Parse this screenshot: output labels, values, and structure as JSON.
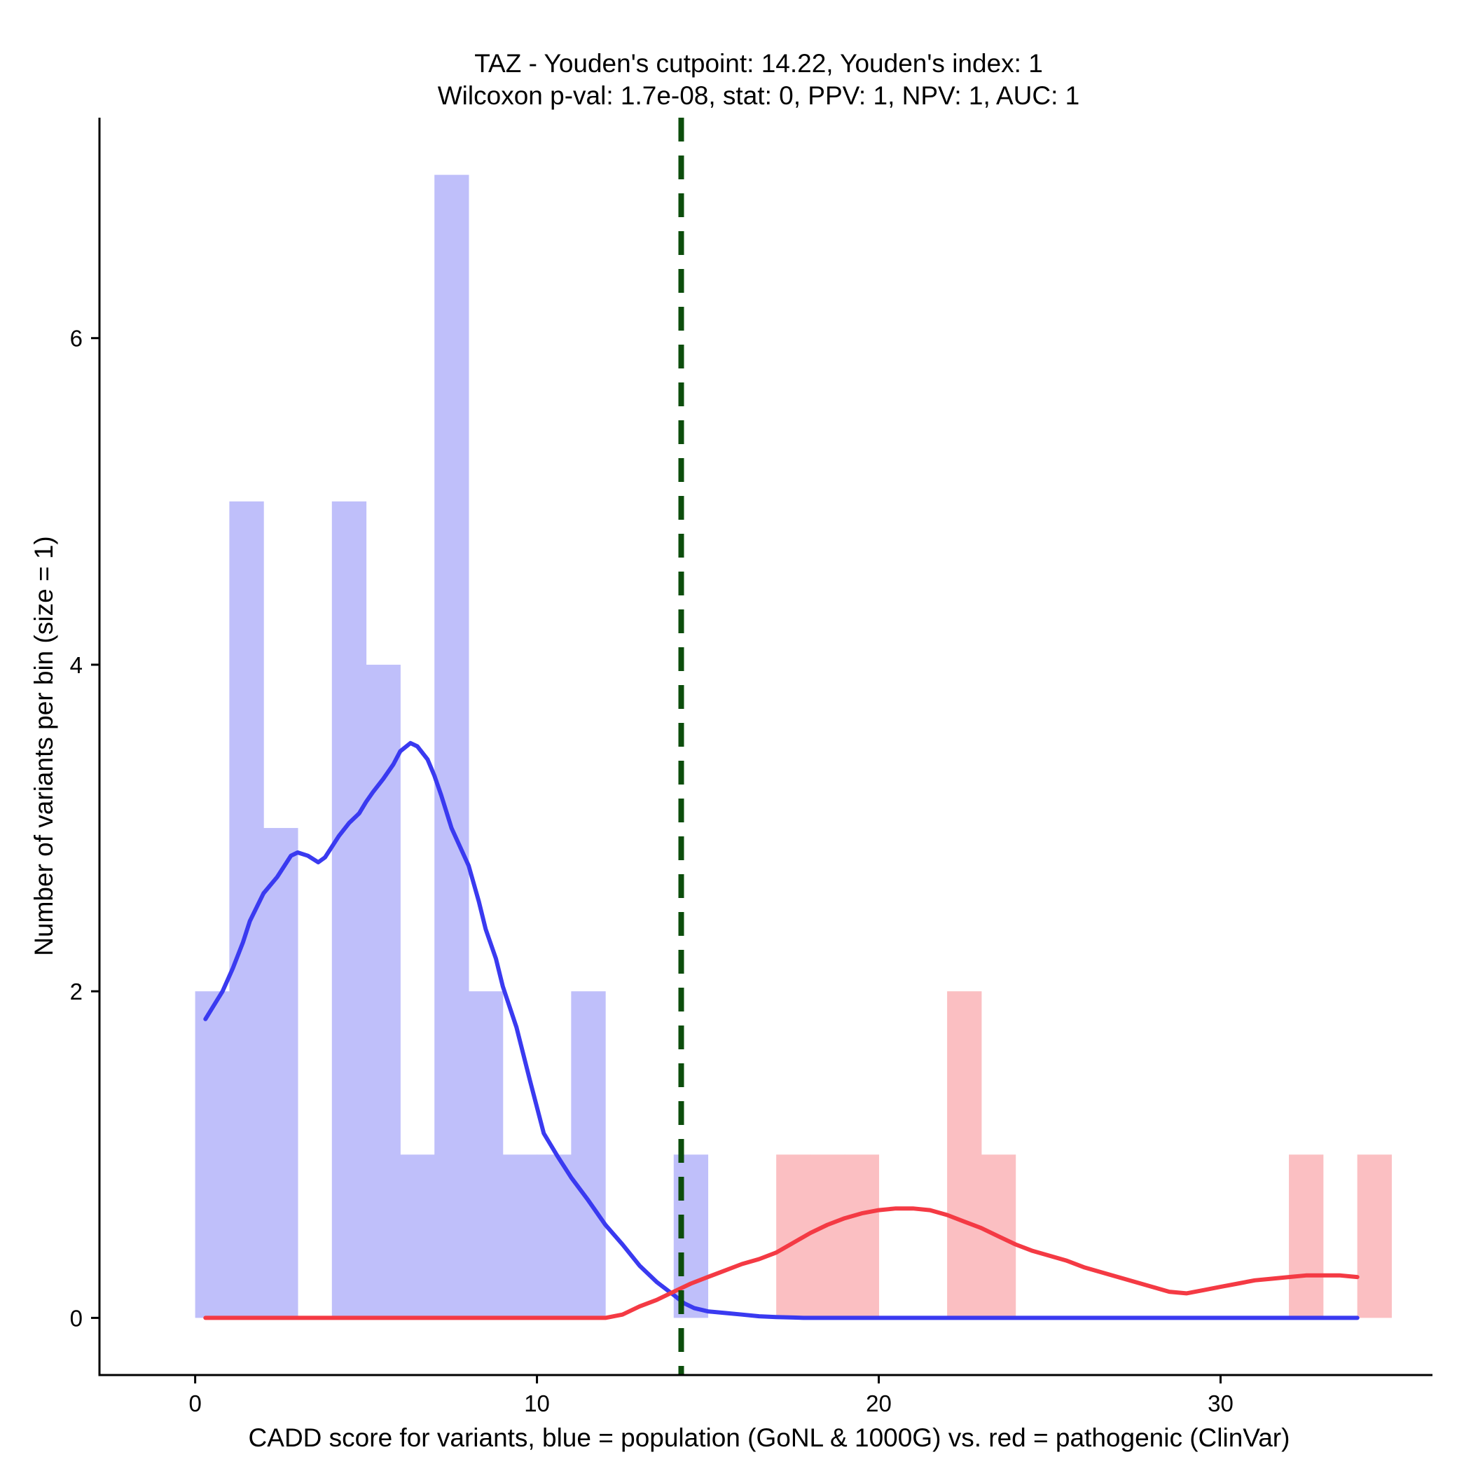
{
  "chart_data": {
    "type": "bar",
    "title": "TAZ - Youden's cutpoint: 14.22, Youden's index: 1",
    "subtitle": "Wilcoxon p-val: 1.7e-08, stat: 0, PPV: 1, NPV: 1, AUC: 1",
    "xlabel": "CADD score for variants, blue = population (GoNL & 1000G) vs. red = pathogenic (ClinVar)",
    "ylabel": "Number of variants per bin (size = 1)",
    "xlim": [
      -2.8,
      36.2
    ],
    "ylim": [
      -0.35,
      7.35
    ],
    "x_ticks": [
      0,
      10,
      20,
      30
    ],
    "y_ticks": [
      0,
      2,
      4,
      6
    ],
    "grid": false,
    "bin_width": 1,
    "cutpoint": 14.22,
    "colors": {
      "population_bar": "#bfbffa",
      "pathogenic_bar": "#fbbfc2",
      "population_line": "#3a3af0",
      "pathogenic_line": "#f43a44",
      "cutpoint_line": "#0c4d0c"
    },
    "series": [
      {
        "name": "population (GoNL & 1000G)",
        "kind": "histogram",
        "bin_starts": [
          0,
          1,
          2,
          4,
          5,
          6,
          7,
          8,
          9,
          10,
          11,
          14
        ],
        "values": [
          2,
          5,
          3,
          5,
          4,
          1,
          7,
          2,
          1,
          1,
          2,
          1
        ]
      },
      {
        "name": "pathogenic (ClinVar)",
        "kind": "histogram",
        "bin_starts": [
          17,
          18,
          19,
          22,
          23,
          32,
          34
        ],
        "values": [
          1,
          1,
          1,
          2,
          1,
          1,
          1
        ]
      },
      {
        "name": "population density",
        "kind": "line",
        "x": [
          0.3,
          0.8,
          1.1,
          1.4,
          1.6,
          2.0,
          2.4,
          2.8,
          3.0,
          3.3,
          3.6,
          3.8,
          4.2,
          4.5,
          4.8,
          5.0,
          5.2,
          5.5,
          5.8,
          6.0,
          6.3,
          6.5,
          6.8,
          7.0,
          7.2,
          7.5,
          8.0,
          8.3,
          8.5,
          8.8,
          9.0,
          9.4,
          9.8,
          10.2,
          10.6,
          11.0,
          11.5,
          12.0,
          12.5,
          13.0,
          13.5,
          14.0,
          14.3,
          14.6,
          15.0,
          15.5,
          16.0,
          16.5,
          17.0,
          17.5,
          17.8,
          20.0,
          25.0,
          30.0,
          34.0
        ],
        "y": [
          1.83,
          2.0,
          2.14,
          2.3,
          2.43,
          2.6,
          2.7,
          2.83,
          2.85,
          2.83,
          2.79,
          2.82,
          2.95,
          3.03,
          3.09,
          3.16,
          3.22,
          3.3,
          3.39,
          3.47,
          3.52,
          3.5,
          3.42,
          3.32,
          3.2,
          3.0,
          2.77,
          2.55,
          2.38,
          2.2,
          2.03,
          1.78,
          1.45,
          1.13,
          0.99,
          0.86,
          0.72,
          0.57,
          0.45,
          0.32,
          0.22,
          0.14,
          0.09,
          0.06,
          0.04,
          0.03,
          0.02,
          0.01,
          0.005,
          0.002,
          0.0,
          0.0,
          0.0,
          0.0,
          0.0
        ]
      },
      {
        "name": "pathogenic density",
        "kind": "line",
        "x": [
          0.3,
          5.0,
          10.0,
          11.0,
          11.5,
          12.0,
          12.5,
          13.0,
          13.5,
          14.0,
          14.5,
          15.0,
          15.5,
          16.0,
          16.5,
          17.0,
          17.5,
          18.0,
          18.5,
          19.0,
          19.5,
          20.0,
          20.5,
          21.0,
          21.5,
          22.0,
          22.5,
          23.0,
          23.5,
          24.0,
          24.5,
          25.0,
          25.5,
          26.0,
          26.5,
          27.0,
          27.5,
          28.0,
          28.5,
          29.0,
          29.5,
          30.0,
          30.5,
          31.0,
          31.5,
          32.0,
          32.5,
          33.0,
          33.5,
          34.0
        ],
        "y": [
          0.0,
          0.0,
          0.0,
          0.0,
          0.0,
          0.0,
          0.02,
          0.07,
          0.11,
          0.16,
          0.21,
          0.25,
          0.29,
          0.33,
          0.36,
          0.4,
          0.46,
          0.52,
          0.57,
          0.61,
          0.64,
          0.66,
          0.67,
          0.67,
          0.66,
          0.63,
          0.59,
          0.55,
          0.5,
          0.45,
          0.41,
          0.38,
          0.35,
          0.31,
          0.28,
          0.25,
          0.22,
          0.19,
          0.16,
          0.15,
          0.17,
          0.19,
          0.21,
          0.23,
          0.24,
          0.25,
          0.26,
          0.26,
          0.26,
          0.25
        ]
      }
    ]
  }
}
